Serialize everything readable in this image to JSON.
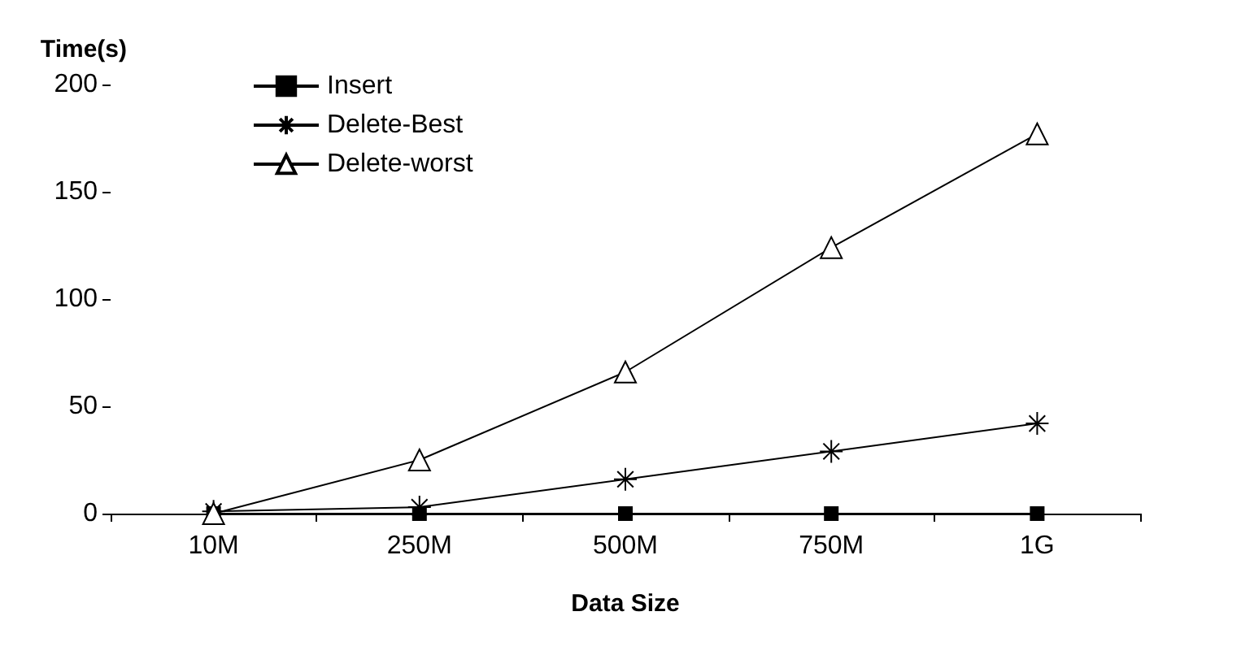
{
  "chart_data": {
    "type": "line",
    "ylabel": "Time(s)",
    "xlabel": "Data Size",
    "categories": [
      "10M",
      "250M",
      "500M",
      "750M",
      "1G"
    ],
    "series": [
      {
        "name": "Insert",
        "color": "#000000",
        "marker": "square",
        "values": [
          0,
          0,
          0,
          0,
          0
        ]
      },
      {
        "name": "Delete-Best",
        "color": "#000000",
        "marker": "cross",
        "values": [
          1,
          3,
          16,
          29,
          42
        ]
      },
      {
        "name": "Delete-worst",
        "color": "#000000",
        "marker": "triangle",
        "values": [
          0,
          25,
          66,
          124,
          177
        ]
      }
    ],
    "ylim": [
      0,
      200
    ],
    "yticks": [
      0,
      50,
      100,
      150,
      200
    ],
    "grid": false,
    "legend": "top left"
  }
}
